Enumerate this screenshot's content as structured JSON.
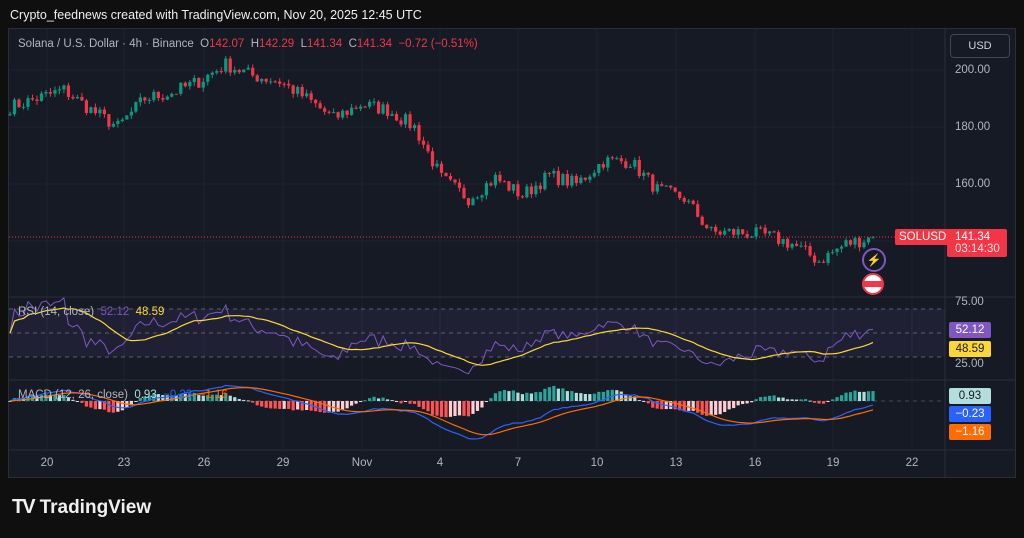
{
  "caption": "Crypto_feednews created with TradingView.com, Nov 20, 2025 12:45 UTC",
  "header": {
    "symbol": "Solana / U.S. Dollar · 4h · Binance",
    "o_label": "O",
    "o": "142.07",
    "h_label": "H",
    "h": "142.29",
    "l_label": "L",
    "l": "141.34",
    "c_label": "C",
    "c": "141.34",
    "change": "−0.72 (−0.51%)"
  },
  "currency_button": "USD",
  "price_axis": [
    "200.00",
    "180.00",
    "160.00"
  ],
  "last_price": {
    "symbol": "SOLUSD",
    "price": "141.34",
    "countdown": "03:14:30"
  },
  "rsi": {
    "label": "RSI (14, close)",
    "value": "52.12",
    "ma": "48.59",
    "axis": [
      "75.00",
      "25.00"
    ]
  },
  "macd": {
    "label": "MACD (12, 26, close)",
    "hist": "0.93",
    "macd": "−0.23",
    "signal": "−1.16"
  },
  "time_axis": [
    "20",
    "23",
    "26",
    "29",
    "Nov",
    "4",
    "7",
    "10",
    "13",
    "16",
    "19",
    "22"
  ],
  "brand": "TradingView",
  "colors": {
    "up": "#089981",
    "down": "#f23645",
    "rsi": "#7e57c2",
    "rsi_ma": "#fdd835",
    "macd": "#2962ff",
    "signal": "#ff6d00"
  },
  "chart_data": {
    "type": "candlestick",
    "interval": "4h",
    "ylim": [
      128,
      208
    ],
    "daily_anchor_dates": [
      "Oct 19",
      "Oct 20",
      "Oct 21",
      "Oct 22",
      "Oct 23",
      "Oct 24",
      "Oct 25",
      "Oct 26",
      "Oct 27",
      "Oct 28",
      "Oct 29",
      "Oct 30",
      "Oct 31",
      "Nov 1",
      "Nov 2",
      "Nov 3",
      "Nov 4",
      "Nov 5",
      "Nov 6",
      "Nov 7",
      "Nov 8",
      "Nov 9",
      "Nov 10",
      "Nov 11",
      "Nov 12",
      "Nov 13",
      "Nov 14",
      "Nov 15",
      "Nov 16",
      "Nov 17",
      "Nov 18",
      "Nov 19",
      "Nov 20"
    ],
    "daily_close_approx": [
      187,
      190,
      193,
      186,
      180,
      190,
      192,
      196,
      202,
      198,
      196,
      190,
      183,
      188,
      186,
      180,
      162,
      155,
      162,
      156,
      163,
      160,
      168,
      168,
      158,
      155,
      143,
      143,
      142,
      139,
      133,
      139,
      141.34
    ]
  }
}
